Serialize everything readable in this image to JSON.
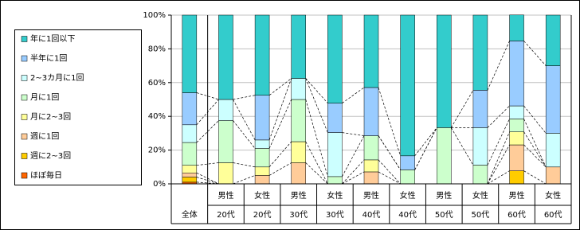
{
  "chart_data": {
    "type": "stacked_bar_100",
    "category_groups": [
      null,
      "男性",
      "女性",
      "男性",
      "女性",
      "男性",
      "女性",
      "男性",
      "女性",
      "男性",
      "女性"
    ],
    "categories": [
      "全体",
      "20代",
      "20代",
      "30代",
      "30代",
      "40代",
      "40代",
      "50代",
      "50代",
      "60代",
      "60代"
    ],
    "series": [
      {
        "name": "ほぼ毎日",
        "color": "#ff6600",
        "values": [
          1,
          0,
          0,
          0,
          0,
          0,
          0,
          0,
          0,
          0,
          0
        ]
      },
      {
        "name": "週に2~3回",
        "color": "#ffcc00",
        "values": [
          3,
          0,
          0,
          0,
          0,
          0,
          0,
          0,
          0,
          7.7,
          0
        ]
      },
      {
        "name": "週に1回",
        "color": "#ffcc99",
        "values": [
          2.5,
          0,
          5,
          12.5,
          0,
          7.1,
          0,
          0,
          0,
          15.4,
          10
        ]
      },
      {
        "name": "月に2~3回",
        "color": "#ffff99",
        "values": [
          4.5,
          12.5,
          5,
          12.5,
          0,
          7.1,
          0,
          0,
          0,
          7.7,
          0
        ]
      },
      {
        "name": "月に1回",
        "color": "#ccffcc",
        "values": [
          13.5,
          25,
          11,
          25,
          4.3,
          14.3,
          8.3,
          33.3,
          11.1,
          7.7,
          0
        ]
      },
      {
        "name": "2~3カ月に1回",
        "color": "#ccffff",
        "values": [
          10.5,
          12.5,
          5,
          12.5,
          26.1,
          0,
          0,
          0,
          22.2,
          7.7,
          20
        ]
      },
      {
        "name": "半年に1回",
        "color": "#99ccff",
        "values": [
          19,
          0,
          26.5,
          0,
          17.4,
          28.6,
          8.3,
          0,
          22.2,
          38.5,
          40
        ]
      },
      {
        "name": "年に1回以下",
        "color": "#33cccc",
        "values": [
          46,
          50,
          47.5,
          37.5,
          52.2,
          42.9,
          83.4,
          66.7,
          44.5,
          15.4,
          30
        ]
      }
    ],
    "ylim": [
      0,
      100
    ],
    "yticks": [
      {
        "value": 0,
        "label": "0%"
      },
      {
        "value": 20,
        "label": "20%"
      },
      {
        "value": 40,
        "label": "40%"
      },
      {
        "value": 60,
        "label": "60%"
      },
      {
        "value": 80,
        "label": "80%"
      },
      {
        "value": 100,
        "label": "100%"
      }
    ],
    "grid": true,
    "legend": "left"
  }
}
